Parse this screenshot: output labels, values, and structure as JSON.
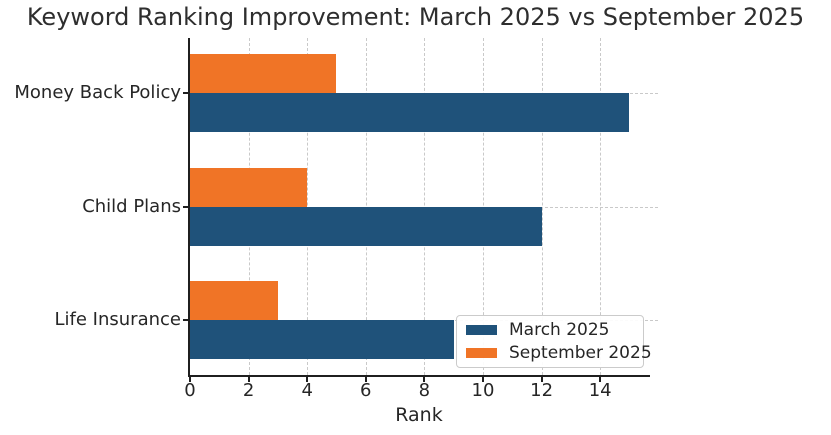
{
  "chart_data": {
    "type": "bar",
    "orientation": "horizontal",
    "title": "Keyword Ranking Improvement: March 2025 vs September 2025",
    "xlabel": "Rank",
    "ylabel": "",
    "categories": [
      "Money Back Policy",
      "Child Plans",
      "Life Insurance"
    ],
    "series": [
      {
        "name": "March 2025",
        "color": "#1F527A",
        "values": [
          15,
          12,
          9
        ]
      },
      {
        "name": "September 2025",
        "color": "#F07426",
        "values": [
          5,
          4,
          3
        ]
      }
    ],
    "xticks": [
      0,
      2,
      4,
      6,
      8,
      10,
      12,
      14
    ],
    "xlim": [
      0,
      15.7
    ],
    "grid": "dashed",
    "grid_color": "#c9c9c9",
    "legend_position": "lower right",
    "text_color": "#262626",
    "spine_color": "#1f1f1f"
  }
}
